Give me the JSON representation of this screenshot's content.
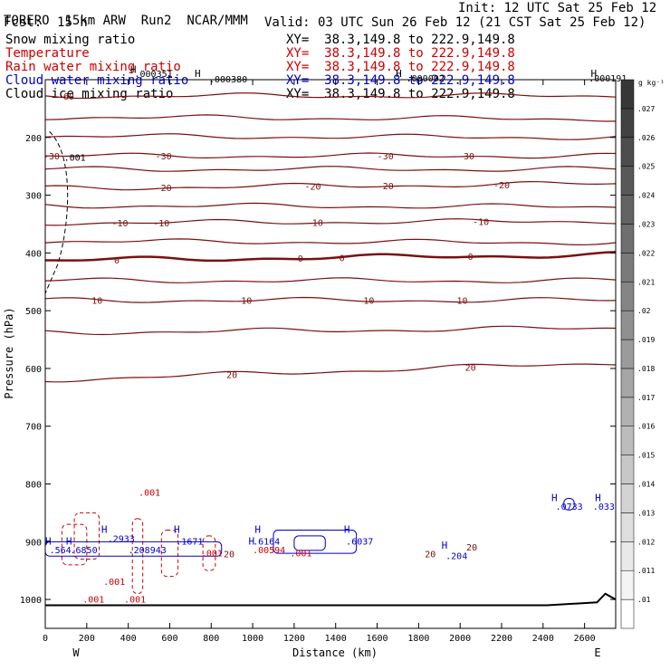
{
  "header": {
    "model_name": "TORERO",
    "resolution": "15km ARW",
    "run": "Run2",
    "org": "NCAR/MMM",
    "init": "Init: 12 UTC Sat 25 Feb 12",
    "fcst_label": "Fcst:",
    "fcst_value": "15 h",
    "valid": "Valid: 03 UTC Sun 26 Feb 12 (21 CST Sat 25 Feb 12)"
  },
  "fields": [
    {
      "name": "Snow mixing ratio",
      "xy": "",
      "color": "#000000"
    },
    {
      "name": "Temperature",
      "xy": "XY=  38.3,149.8 to 222.9,149.8",
      "color": "#cc0000"
    },
    {
      "name": "Rain water mixing ratio",
      "xy": "XY=  38.3,149.8 to 222.9,149.8",
      "color": "#cc0000"
    },
    {
      "name": "Cloud water mixing ratio",
      "xy": "XY=  38.3,149.8 to 222.9,149.8",
      "color": "#0000cc"
    },
    {
      "name": "Cloud ice mixing ratio",
      "xy": "XY=  38.3,149.8 to 222.9,149.8",
      "color": "#000000"
    }
  ],
  "first_xy": "XY=  38.3,149.8 to 222.9,149.8",
  "chart_data": {
    "type": "contour",
    "title": "",
    "xlabel": "Distance (km)",
    "ylabel": "Pressure (hPa)",
    "xlim": [
      0,
      2750
    ],
    "ylim": [
      1050,
      100
    ],
    "x_ticks": [
      0,
      200,
      400,
      600,
      800,
      1000,
      1200,
      1400,
      1600,
      1800,
      2000,
      2200,
      2400,
      2600
    ],
    "y_ticks": [
      200,
      300,
      400,
      500,
      600,
      700,
      800,
      900,
      1000
    ],
    "x_end_labels": {
      "left": "W",
      "right": "E"
    },
    "temperature_contours": [
      {
        "value": -60,
        "label": "-60",
        "p_left": 128,
        "p_right": 128,
        "labels_at": [
          100
        ]
      },
      {
        "value": -50,
        "label": "",
        "p_left": 165,
        "p_right": 168,
        "labels_at": []
      },
      {
        "value": -40,
        "label": "",
        "p_left": 198,
        "p_right": 200,
        "labels_at": []
      },
      {
        "value": -30,
        "label": "-30",
        "p_left": 232,
        "p_right": 232,
        "labels_at": [
          30,
          570,
          1640,
          2030
        ]
      },
      {
        "value": -25,
        "label": "",
        "p_left": 255,
        "p_right": 255,
        "labels_at": []
      },
      {
        "value": -20,
        "label": "-20",
        "p_left": 288,
        "p_right": 280,
        "labels_at": [
          570,
          1290,
          1640,
          2200
        ]
      },
      {
        "value": -15,
        "label": "",
        "p_left": 318,
        "p_right": 320,
        "labels_at": []
      },
      {
        "value": -10,
        "label": "-10",
        "p_left": 348,
        "p_right": 345,
        "labels_at": [
          360,
          560,
          1300,
          2100
        ]
      },
      {
        "value": -5,
        "label": "",
        "p_left": 380,
        "p_right": 382,
        "labels_at": []
      },
      {
        "value": 0,
        "label": "0",
        "p_left": 413,
        "p_right": 403,
        "labels_at": [
          345,
          1230,
          1430,
          2050
        ]
      },
      {
        "value": 5,
        "label": "",
        "p_left": 448,
        "p_right": 448,
        "labels_at": []
      },
      {
        "value": 10,
        "label": "10",
        "p_left": 482,
        "p_right": 482,
        "labels_at": [
          250,
          970,
          1560,
          2010
        ]
      },
      {
        "value": 15,
        "label": "",
        "p_left": 538,
        "p_right": 530,
        "labels_at": []
      },
      {
        "value": 20,
        "label": "20",
        "p_left": 620,
        "p_right": 590,
        "labels_at": [
          900,
          2050
        ]
      }
    ],
    "max_labels": [
      {
        "text": ".000351",
        "x": 430,
        "p": 95
      },
      {
        "text": ".000380",
        "x": 790,
        "p": 105
      },
      {
        "text": ".000002",
        "x": 1740,
        "p": 103
      },
      {
        "text": ".000191",
        "x": 2620,
        "p": 103
      },
      {
        "text": ".001",
        "x": 90,
        "p": 240
      },
      {
        "text": ".001",
        "x": 450,
        "p": 820
      },
      {
        "text": ".2933",
        "x": 300,
        "p": 900
      },
      {
        "text": ".1671",
        "x": 630,
        "p": 905
      },
      {
        "text": ".6164",
        "x": 1000,
        "p": 905
      },
      {
        "text": ".6037",
        "x": 1450,
        "p": 905
      },
      {
        "text": ".0733",
        "x": 2460,
        "p": 845
      },
      {
        "text": ".033",
        "x": 2640,
        "p": 845
      },
      {
        "text": ".564",
        "x": 20,
        "p": 920
      },
      {
        "text": ".6850",
        "x": 120,
        "p": 920
      },
      {
        "text": ".208943",
        "x": 400,
        "p": 920
      },
      {
        "text": ".00594",
        "x": 1000,
        "p": 920
      },
      {
        "text": ".001",
        "x": 750,
        "p": 925
      },
      {
        "text": ".001",
        "x": 1180,
        "p": 925
      },
      {
        "text": ".204",
        "x": 1930,
        "p": 930
      },
      {
        "text": ".001",
        "x": 280,
        "p": 975
      },
      {
        "text": ".001",
        "x": 180,
        "p": 1005
      },
      {
        "text": ".001",
        "x": 380,
        "p": 1005
      },
      {
        "text": "20",
        "x": 860,
        "p": 927
      },
      {
        "text": "20",
        "x": 1830,
        "p": 927
      },
      {
        "text": "20",
        "x": 2030,
        "p": 915
      },
      {
        "text": "H",
        "x": 0,
        "p": 905
      },
      {
        "text": "H",
        "x": 100,
        "p": 905
      },
      {
        "text": "H",
        "x": 270,
        "p": 885
      },
      {
        "text": "H",
        "x": 620,
        "p": 885
      },
      {
        "text": "H",
        "x": 980,
        "p": 905
      },
      {
        "text": "H",
        "x": 1010,
        "p": 885
      },
      {
        "text": "H",
        "x": 1440,
        "p": 885
      },
      {
        "text": "H",
        "x": 1910,
        "p": 912
      },
      {
        "text": "H",
        "x": 2440,
        "p": 830
      },
      {
        "text": "H",
        "x": 2650,
        "p": 830
      },
      {
        "text": "H",
        "x": 410,
        "p": 88
      },
      {
        "text": "H",
        "x": 720,
        "p": 95
      },
      {
        "text": "H",
        "x": 1690,
        "p": 95
      },
      {
        "text": "H",
        "x": 2630,
        "p": 95
      }
    ],
    "colorbar": {
      "unit_label": "g kg⁻¹",
      "ticks": [
        ".01",
        ".011",
        ".012",
        ".013",
        ".014",
        ".015",
        ".016",
        ".017",
        ".018",
        ".019",
        ".02",
        ".021",
        ".022",
        ".023",
        ".024",
        ".025",
        ".026",
        ".027"
      ]
    },
    "colors": {
      "temperature": "#7a1010",
      "rain": "#cc0000",
      "cloud_water": "#0000cc",
      "snow": "#000000",
      "terrain": "#000000"
    }
  }
}
